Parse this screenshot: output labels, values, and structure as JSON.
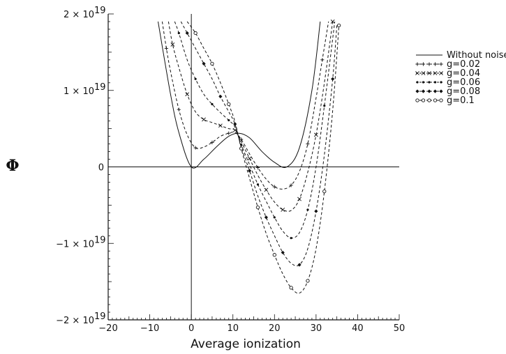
{
  "chart_data": {
    "type": "line",
    "xlabel": "Average ionization",
    "ylabel": "Φ",
    "xlim": [
      -20,
      50
    ],
    "ylim": [
      -2e+19,
      2e+19
    ],
    "x_ticks": [
      -20,
      -10,
      0,
      10,
      20,
      30,
      40,
      50
    ],
    "y_ticks": [
      {
        "value": 2e+19,
        "label": "2 × 10",
        "exp": "19"
      },
      {
        "value": 1e+19,
        "label": "1 × 10",
        "exp": "19"
      },
      {
        "value": 0,
        "label": "0",
        "exp": ""
      },
      {
        "value": -1e+19,
        "label": "−1 × 10",
        "exp": "19"
      },
      {
        "value": -2e+19,
        "label": "−2 × 10",
        "exp": "19"
      }
    ],
    "grid": false,
    "legend_position": "right",
    "series": [
      {
        "name": "Without noise",
        "marker": "none",
        "dash": "solid",
        "g": 0,
        "x": [
          -8,
          -5,
          -3,
          0,
          3,
          6,
          9,
          11.5,
          14,
          17,
          20,
          23,
          26,
          29,
          31
        ],
        "y": [
          1.9e+19,
          9.5e+18,
          4.5e+18,
          0,
          1e+18,
          2.6e+18,
          4e+18,
          4.4e+18,
          3.8e+18,
          2e+18,
          6e+17,
          0,
          2.5e+18,
          1e+19,
          1.9e+19
        ]
      },
      {
        "name": "g=0.02",
        "marker": "plus",
        "dash": "dashed",
        "g": 0.02,
        "x": [
          -7,
          -6,
          -5,
          -3,
          -1,
          1,
          3,
          5,
          7,
          9,
          10.5,
          12,
          14,
          16,
          18,
          20,
          22,
          24,
          26,
          28,
          30,
          31.5,
          33
        ],
        "y": [
          1.9e+19,
          1.55e+19,
          1.25e+19,
          7.5e+18,
          4.2e+18,
          2.5e+18,
          2.6e+18,
          3.2e+18,
          4e+18,
          4.4e+18,
          4.5e+18,
          3.6e+18,
          1.7e+18,
          -1e+17,
          -1.6e+18,
          -2.6e+18,
          -2.9e+18,
          -2.4e+18,
          -6e+17,
          3e+18,
          9e+18,
          1.4e+19,
          1.9e+19
        ]
      },
      {
        "name": "g=0.04",
        "marker": "x",
        "dash": "dashed",
        "g": 0.04,
        "x": [
          -5.5,
          -4.5,
          -3,
          -1,
          1,
          3,
          5,
          7,
          9,
          10.5,
          12,
          14,
          16,
          18,
          20,
          22,
          24,
          26,
          28,
          30,
          32,
          34
        ],
        "y": [
          1.9e+19,
          1.6e+19,
          1.3e+19,
          9.5e+18,
          7.2e+18,
          6.2e+18,
          5.8e+18,
          5.4e+18,
          5e+18,
          4.8e+18,
          3.3e+18,
          1.1e+18,
          -1.1e+18,
          -3e+18,
          -4.6e+18,
          -5.6e+18,
          -5.7e+18,
          -4.2e+18,
          -7e+17,
          4.2e+18,
          1.1e+19,
          1.9e+19
        ]
      },
      {
        "name": "g=0.06",
        "marker": "dot",
        "dash": "dashed",
        "g": 0.06,
        "x": [
          -4,
          -3,
          -1,
          1,
          3,
          5,
          7,
          9,
          10.5,
          12,
          14,
          16,
          18,
          20,
          22,
          24,
          26,
          28,
          30,
          32,
          34.5
        ],
        "y": [
          1.9e+19,
          1.75e+19,
          1.4e+19,
          1.15e+19,
          9.5e+18,
          8.2e+18,
          7.1e+18,
          6.1e+18,
          5.2e+18,
          2.9e+18,
          3e+17,
          -2.3e+18,
          -4.5e+18,
          -6.6e+18,
          -8.4e+18,
          -9.3e+18,
          -8.6e+18,
          -5.6e+18,
          0,
          8e+18,
          1.9e+19
        ]
      },
      {
        "name": "g=0.08",
        "marker": "diamond",
        "dash": "dashed",
        "g": 0.08,
        "x": [
          -2.5,
          -1,
          1,
          3,
          5,
          7,
          9,
          10.5,
          12,
          14,
          16,
          18,
          20,
          22,
          24,
          26,
          28,
          30,
          32,
          34,
          35
        ],
        "y": [
          1.9e+19,
          1.75e+19,
          1.55e+19,
          1.35e+19,
          1.15e+19,
          9.2e+18,
          7.2e+18,
          5.6e+18,
          2.6e+18,
          -5e+17,
          -3.8e+18,
          -6.6e+18,
          -9e+18,
          -1.12e+19,
          -1.26e+19,
          -1.28e+19,
          -1.07e+19,
          -5.8e+18,
          1.6e+18,
          1.15e+19,
          1.85e+19
        ]
      },
      {
        "name": "g=0.1",
        "marker": "circle",
        "dash": "dashed",
        "g": 0.1,
        "x": [
          -1,
          1,
          3,
          5,
          7,
          9,
          10.5,
          12,
          14,
          16,
          18,
          20,
          22,
          24,
          26,
          28,
          30,
          32,
          34,
          35.5
        ],
        "y": [
          1.9e+19,
          1.75e+19,
          1.55e+19,
          1.35e+19,
          1.1e+19,
          8.2e+18,
          5.9e+18,
          2.4e+18,
          -1.5e+18,
          -5.3e+18,
          -8.7e+18,
          -1.15e+19,
          -1.4e+19,
          -1.58e+19,
          -1.65e+19,
          -1.49e+19,
          -1.07e+19,
          -3.2e+18,
          7.4e+18,
          1.85e+19
        ]
      }
    ]
  }
}
